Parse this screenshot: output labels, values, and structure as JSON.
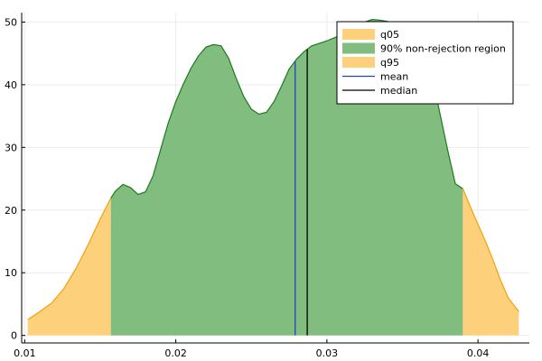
{
  "chart_data": {
    "type": "area",
    "title": "",
    "xlabel": "",
    "ylabel": "",
    "xlim": [
      0.0098,
      0.0434
    ],
    "ylim": [
      -1.2,
      51.5
    ],
    "grid": true,
    "legend_position": "top-right",
    "x_ticks": [
      {
        "value": 0.01,
        "label": "0.01"
      },
      {
        "value": 0.02,
        "label": "0.02"
      },
      {
        "value": 0.03,
        "label": "0.03"
      },
      {
        "value": 0.04,
        "label": "0.04"
      }
    ],
    "y_ticks": [
      {
        "value": 0,
        "label": "0"
      },
      {
        "value": 10,
        "label": "10"
      },
      {
        "value": 20,
        "label": "20"
      },
      {
        "value": 30,
        "label": "30"
      },
      {
        "value": 40,
        "label": "40"
      },
      {
        "value": 50,
        "label": "50"
      }
    ],
    "density": {
      "x": [
        0.0102,
        0.011,
        0.0118,
        0.0126,
        0.0134,
        0.0142,
        0.015,
        0.0157,
        0.016,
        0.0165,
        0.017,
        0.0175,
        0.018,
        0.0185,
        0.019,
        0.0195,
        0.02,
        0.0205,
        0.021,
        0.0215,
        0.022,
        0.0225,
        0.023,
        0.0235,
        0.024,
        0.0245,
        0.025,
        0.0255,
        0.026,
        0.0265,
        0.027,
        0.0275,
        0.028,
        0.0285,
        0.029,
        0.0295,
        0.03,
        0.0305,
        0.031,
        0.0315,
        0.032,
        0.0325,
        0.033,
        0.0335,
        0.034,
        0.0345,
        0.035,
        0.0355,
        0.036,
        0.0365,
        0.037,
        0.0375,
        0.038,
        0.0385,
        0.039,
        0.0395,
        0.04,
        0.0405,
        0.041,
        0.0415,
        0.042,
        0.0427
      ],
      "y": [
        2.5,
        3.8,
        5.2,
        7.5,
        10.7,
        14.5,
        18.6,
        21.9,
        23.0,
        24.1,
        23.6,
        22.5,
        22.9,
        25.5,
        29.7,
        33.9,
        37.3,
        40.1,
        42.6,
        44.6,
        46.0,
        46.4,
        46.2,
        44.2,
        41.0,
        38.1,
        36.1,
        35.3,
        35.6,
        37.3,
        39.8,
        42.5,
        44.1,
        45.3,
        46.2,
        46.6,
        47.0,
        47.5,
        48.0,
        48.6,
        49.4,
        50.0,
        50.4,
        50.3,
        50.1,
        49.6,
        48.8,
        47.5,
        45.8,
        44.2,
        41.0,
        35.2,
        29.5,
        24.2,
        23.4,
        20.5,
        17.7,
        15.0,
        12.0,
        8.8,
        6.0,
        3.8
      ]
    },
    "q05": 0.0157,
    "q95": 0.039,
    "mean": 0.0279,
    "median": 0.0287,
    "colors": {
      "tail_fill": "#fdd17b",
      "tail_line": "#f2a10c",
      "center_fill": "#80bd7f",
      "center_line": "#1e7a1e",
      "mean": "#2242c2",
      "median": "#000000",
      "grid": "#ececec",
      "axis": "#000000"
    },
    "legend": [
      {
        "label": "q05",
        "kind": "patch",
        "color": "#fdd17b"
      },
      {
        "label": "90% non-rejection region",
        "kind": "patch",
        "color": "#80bd7f"
      },
      {
        "label": "q95",
        "kind": "patch",
        "color": "#fdd17b"
      },
      {
        "label": "mean",
        "kind": "line",
        "color": "#2242c2"
      },
      {
        "label": "median",
        "kind": "line",
        "color": "#000000"
      }
    ]
  }
}
